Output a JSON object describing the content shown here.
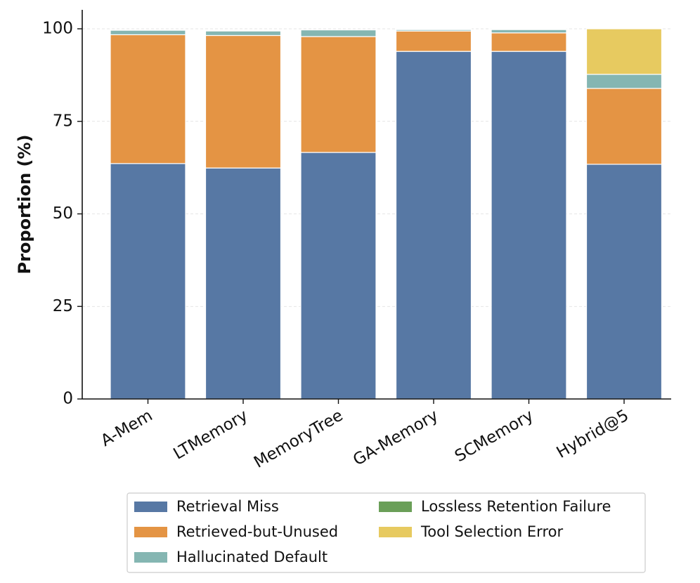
{
  "chart_data": {
    "type": "bar",
    "stacked": true,
    "title": "",
    "xlabel": "",
    "ylabel": "Proportion (%)",
    "ylim": [
      0,
      105
    ],
    "yticks": [
      0,
      25,
      50,
      75,
      100
    ],
    "grid": "horizontal dashed",
    "categories": [
      "A-Mem",
      "LTMemory",
      "MemoryTree",
      "GA-Memory",
      "SCMemory",
      "Hybrid@5"
    ],
    "series": [
      {
        "name": "Retrieval Miss",
        "color": "#5778a4",
        "values": [
          63.6,
          62.4,
          66.6,
          93.9,
          93.9,
          63.4
        ]
      },
      {
        "name": "Retrieved-but-Unused",
        "color": "#e49444",
        "values": [
          34.8,
          35.8,
          31.3,
          5.5,
          5.0,
          20.5
        ]
      },
      {
        "name": "Hallucinated Default",
        "color": "#85b6b2",
        "values": [
          1.2,
          1.2,
          1.8,
          0.4,
          0.9,
          3.8
        ]
      },
      {
        "name": "Lossless Retention Failure",
        "color": "#6a9f58",
        "values": [
          0,
          0,
          0,
          0.2,
          0.2,
          0
        ]
      },
      {
        "name": "Tool Selection Error",
        "color": "#e7ca60",
        "values": [
          0,
          0,
          0,
          0,
          0,
          12.3
        ]
      }
    ],
    "legend": {
      "placement": "bottom-center",
      "columns": 2,
      "order": [
        "Retrieval Miss",
        "Retrieved-but-Unused",
        "Hallucinated Default",
        "Lossless Retention Failure",
        "Tool Selection Error"
      ]
    }
  }
}
